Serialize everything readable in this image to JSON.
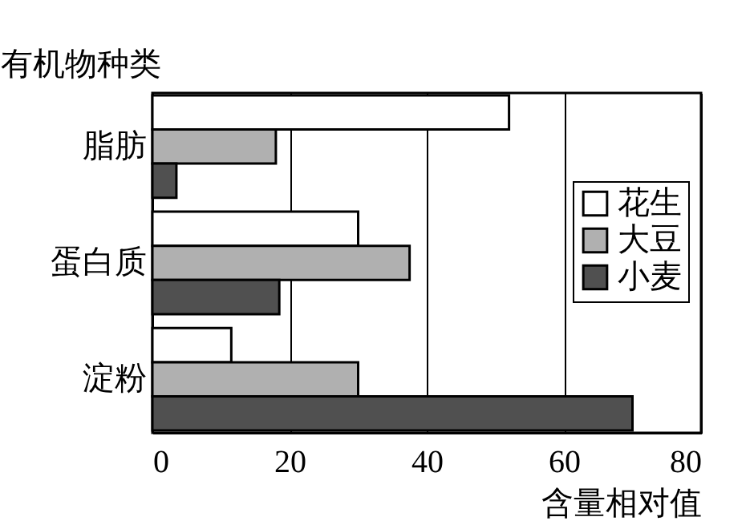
{
  "chart_data": {
    "type": "bar",
    "orientation": "horizontal",
    "xlabel": "含量相对值",
    "ylabel": "有机物种类",
    "categories": [
      "脂肪",
      "蛋白质",
      "淀粉"
    ],
    "series": [
      {
        "name": "花生",
        "color": "#ffffff",
        "values": [
          52,
          30,
          11.5
        ]
      },
      {
        "name": "大豆",
        "color": "#b0b0b0",
        "values": [
          18,
          37.5,
          30
        ]
      },
      {
        "name": "小麦",
        "color": "#505050",
        "values": [
          3.5,
          18.5,
          70
        ]
      }
    ],
    "xlim": [
      0,
      80
    ],
    "xticks": [
      0,
      20,
      40,
      60,
      80
    ],
    "grid": "x",
    "legend": "right"
  }
}
